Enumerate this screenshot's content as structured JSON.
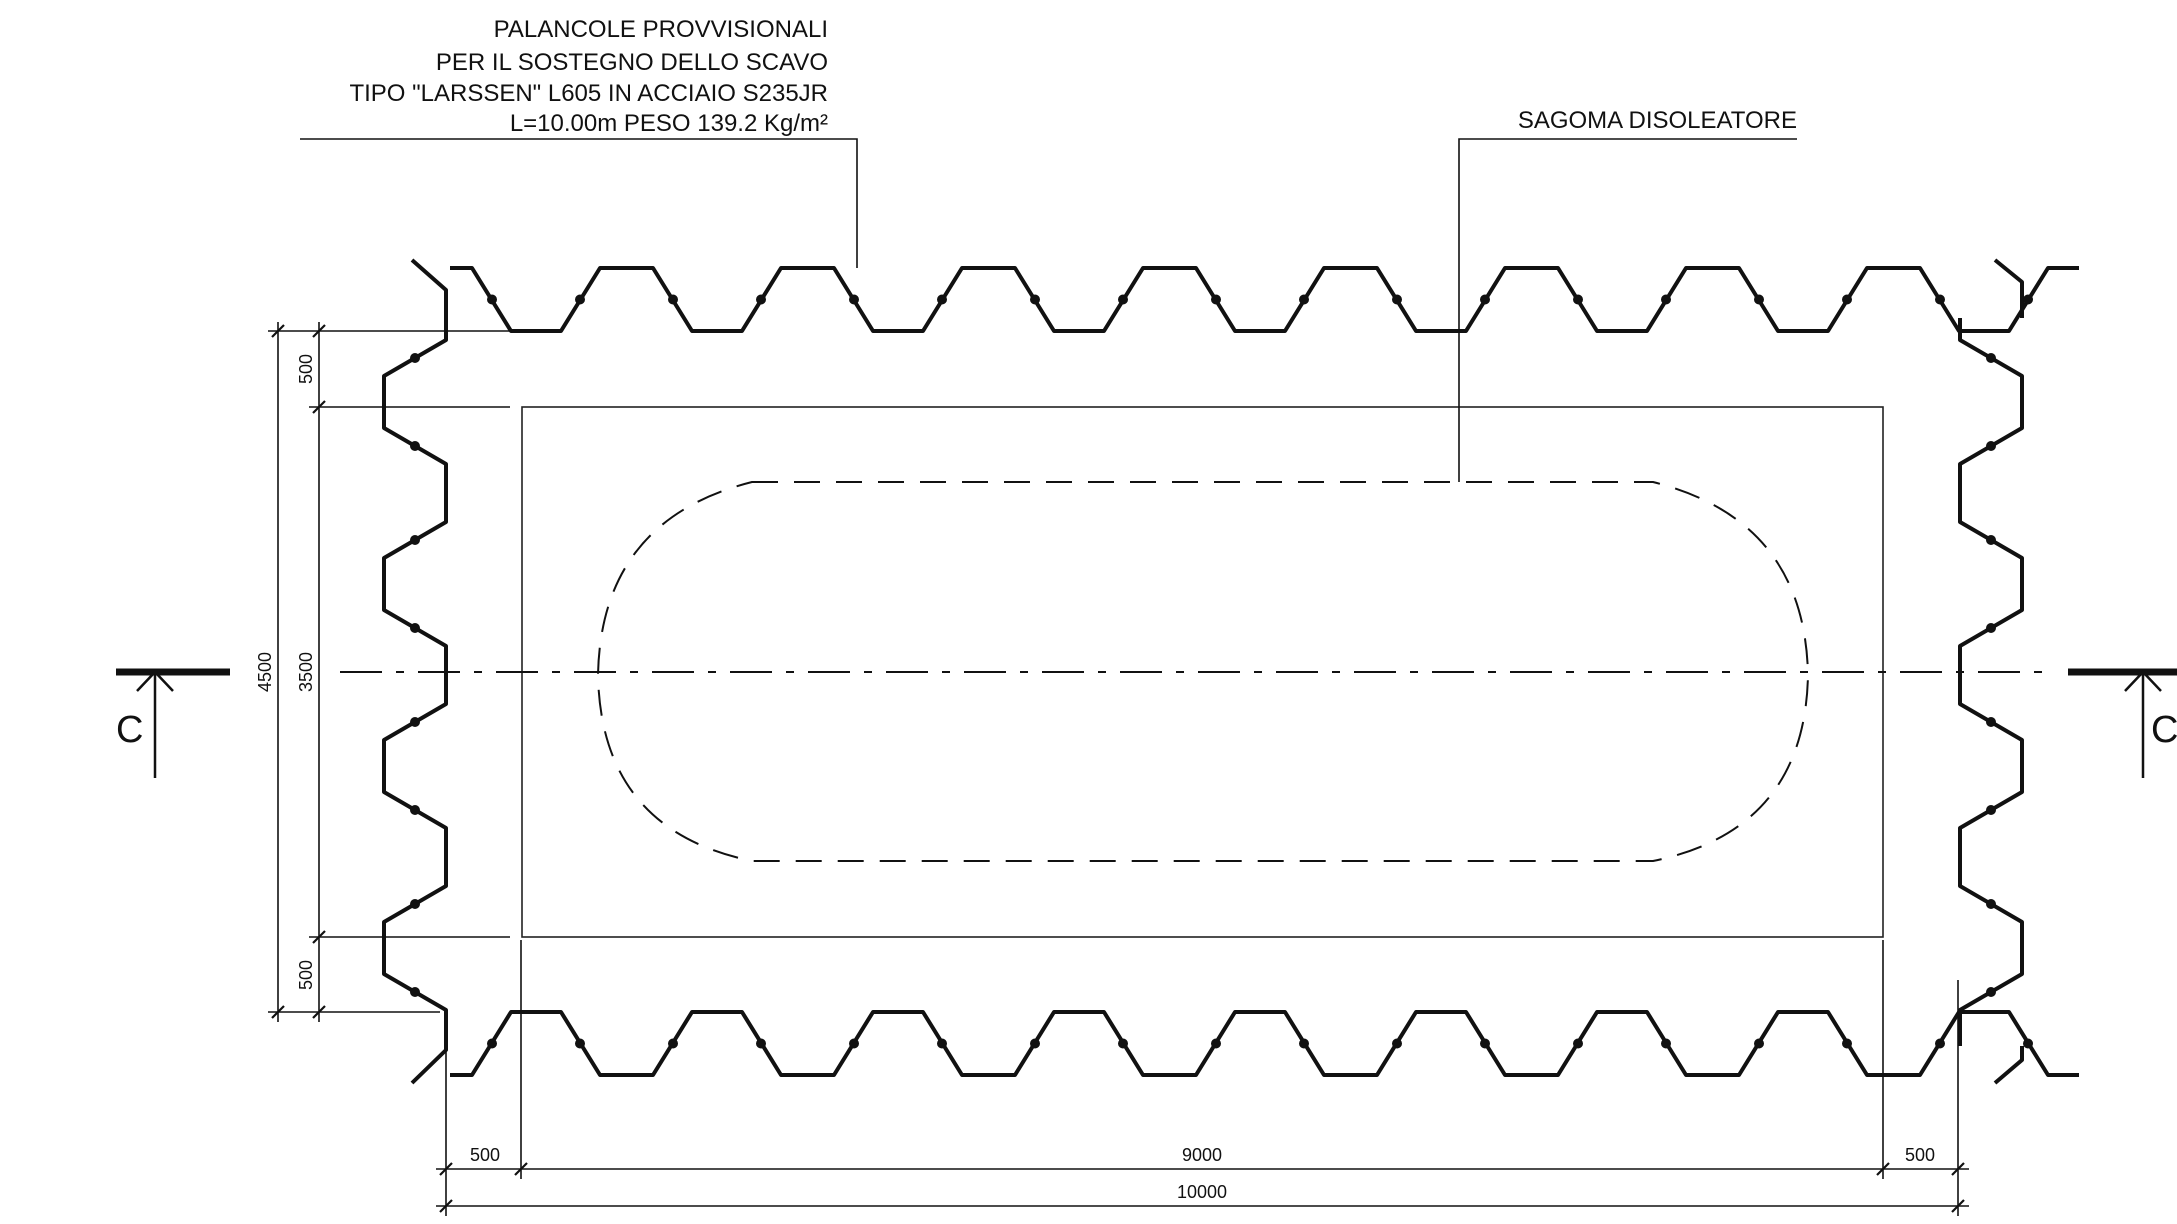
{
  "drawing": {
    "pile_note": {
      "lines": [
        "PALANCOLE PROVVISIONALI",
        "PER IL SOSTEGNO DELLO SCAVO",
        "TIPO \"LARSSEN\" L605 IN ACCIAIO S235JR",
        "L=10.00m PESO 139.2 Kg/m²"
      ]
    },
    "separator_note": "SAGOMA DISOLEATORE",
    "section_marks": {
      "left": "C",
      "right": "C"
    },
    "dimensions": {
      "vertical_total": "4500",
      "vertical_inner": "3500",
      "vertical_top_offset": "500",
      "vertical_bottom_offset": "500",
      "horizontal_left_offset": "500",
      "horizontal_inner": "9000",
      "horizontal_right_offset": "500",
      "horizontal_total": "10000"
    },
    "colors": {
      "line": "#111111",
      "background": "#ffffff"
    }
  }
}
